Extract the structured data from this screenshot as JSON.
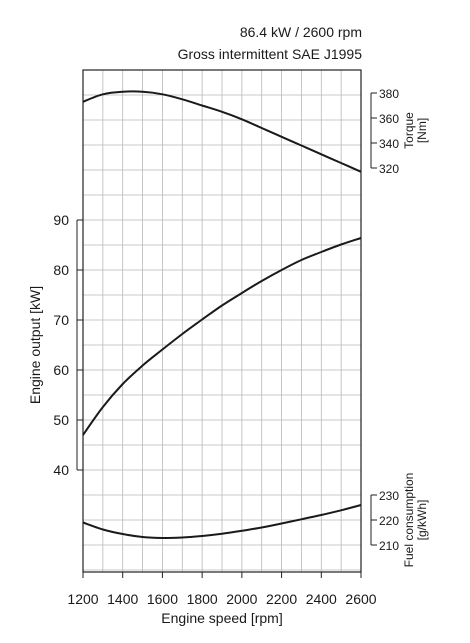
{
  "header": {
    "rating": "86.4 kW / 2600 rpm",
    "standard": "Gross intermittent SAE J1995"
  },
  "chart_data": {
    "type": "line",
    "title": "86.4 kW / 2600 rpm",
    "subtitle": "Gross intermittent SAE J1995",
    "xlabel": "Engine speed [rpm]",
    "xlim": [
      1200,
      2600
    ],
    "xticks": [
      1200,
      1400,
      1600,
      1800,
      2000,
      2200,
      2400,
      2600
    ],
    "grid": true,
    "panels": [
      {
        "name": "torque",
        "label": "Torque [Nm]",
        "label_lines": [
          "Torque",
          "[Nm]"
        ],
        "axis_side": "right",
        "ticks": [
          320,
          340,
          360,
          380
        ],
        "x": [
          1200,
          1300,
          1400,
          1500,
          1600,
          1700,
          1800,
          1900,
          2000,
          2100,
          2200,
          2300,
          2400,
          2500,
          2600
        ],
        "values": [
          373,
          379,
          381,
          381,
          379,
          375,
          370,
          365,
          359,
          352,
          345,
          338,
          331,
          324,
          317
        ]
      },
      {
        "name": "output",
        "label": "Engine output [kW]",
        "axis_side": "left",
        "ticks": [
          40,
          50,
          60,
          70,
          80,
          90
        ],
        "x": [
          1200,
          1300,
          1400,
          1500,
          1600,
          1700,
          1800,
          1900,
          2000,
          2100,
          2200,
          2300,
          2400,
          2500,
          2600
        ],
        "values": [
          47,
          52.6,
          57.2,
          60.9,
          64.1,
          67.2,
          70.1,
          72.9,
          75.4,
          77.8,
          80.0,
          82.0,
          83.6,
          85.1,
          86.4
        ]
      },
      {
        "name": "fuel",
        "label": "Fuel consumption [g/kWh]",
        "label_lines": [
          "Fuel consumption",
          "[g/kWh]"
        ],
        "axis_side": "right",
        "ticks": [
          210,
          220,
          230
        ],
        "x": [
          1200,
          1300,
          1400,
          1500,
          1600,
          1700,
          1800,
          1900,
          2000,
          2100,
          2200,
          2300,
          2400,
          2500,
          2600
        ],
        "values": [
          219,
          216.2,
          214.4,
          213.2,
          212.8,
          213.0,
          213.6,
          214.5,
          215.7,
          217.0,
          218.6,
          220.3,
          222.0,
          223.9,
          226.0
        ]
      }
    ]
  }
}
